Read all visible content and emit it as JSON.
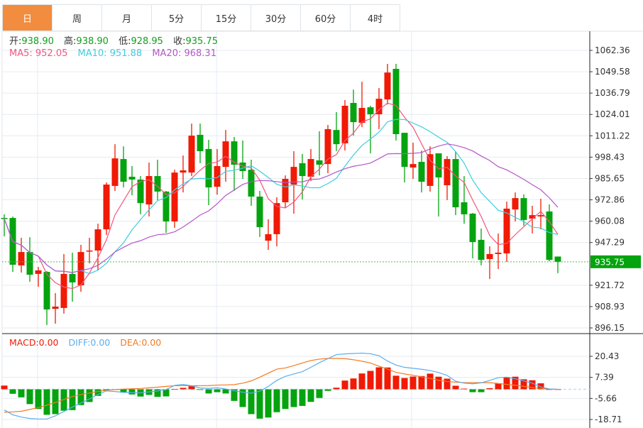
{
  "tabs": [
    {
      "label": "日",
      "active": true
    },
    {
      "label": "周"
    },
    {
      "label": "月"
    },
    {
      "label": "5分"
    },
    {
      "label": "15分"
    },
    {
      "label": "30分"
    },
    {
      "label": "60分"
    },
    {
      "label": "4时"
    }
  ],
  "quote": {
    "open_label": "开:",
    "open": "938.90",
    "high_label": "高:",
    "high": "938.90",
    "low_label": "低:",
    "low": "928.95",
    "close_label": "收:",
    "close": "935.75"
  },
  "ma": {
    "ma5": "MA5: 952.05",
    "ma10": "MA10: 951.88",
    "ma20": "MA20: 968.31"
  },
  "macd_info": {
    "macd": "MACD:0.00",
    "diff": "DIFF:0.00",
    "dea": "DEA:0.00"
  },
  "colors": {
    "up": "#f01a05",
    "down": "#05a30f",
    "accent": "#f28c3e",
    "ma5": "#f2567e",
    "ma10": "#3fcde0",
    "ma20": "#b456c8",
    "diff": "#5aaef0",
    "dea": "#f57a20"
  },
  "current_price": "935.75",
  "chart_data": {
    "type": "candlestick",
    "price_axis": {
      "ticks": [
        "1062.36",
        "1049.58",
        "1036.79",
        "1024.01",
        "1011.22",
        "998.43",
        "985.65",
        "972.86",
        "960.08",
        "947.29",
        "921.72",
        "908.93",
        "896.15"
      ],
      "range": [
        896.15,
        1062.36
      ]
    },
    "macd_axis": {
      "ticks": [
        "20.43",
        "7.39",
        "-5.66",
        "-18.71"
      ],
      "range": [
        -18.71,
        20.43
      ]
    },
    "ohlc": [
      [
        962.0,
        964.2,
        951.0,
        961.6
      ],
      [
        962.0,
        962.9,
        929.7,
        934.0
      ],
      [
        933.6,
        950.1,
        929.3,
        941.6
      ],
      [
        941.6,
        950.5,
        923.8,
        928.0
      ],
      [
        928.5,
        932.7,
        920.8,
        930.6
      ],
      [
        929.7,
        930.2,
        897.9,
        907.2
      ],
      [
        907.6,
        917.0,
        898.7,
        908.9
      ],
      [
        908.1,
        940.4,
        904.7,
        928.5
      ],
      [
        928.5,
        941.2,
        911.9,
        923.4
      ],
      [
        921.7,
        945.9,
        917.8,
        941.6
      ],
      [
        942.1,
        950.1,
        934.8,
        942.5
      ],
      [
        942.5,
        958.6,
        930.6,
        955.2
      ],
      [
        955.2,
        983.3,
        951.8,
        982.0
      ],
      [
        981.2,
        1006.2,
        978.2,
        997.7
      ],
      [
        997.3,
        1004.9,
        980.3,
        983.7
      ],
      [
        986.7,
        993.1,
        975.6,
        985.0
      ],
      [
        985.0,
        987.1,
        964.2,
        970.9
      ],
      [
        970.1,
        995.2,
        962.9,
        987.1
      ],
      [
        987.1,
        996.9,
        972.7,
        977.8
      ],
      [
        977.8,
        978.2,
        953.1,
        959.9
      ],
      [
        959.9,
        990.9,
        956.1,
        989.2
      ],
      [
        989.2,
        999.4,
        977.3,
        990.5
      ],
      [
        989.2,
        1018.5,
        987.1,
        1011.3
      ],
      [
        1011.8,
        1018.5,
        994.8,
        1002.0
      ],
      [
        1003.3,
        1008.8,
        969.7,
        980.3
      ],
      [
        980.7,
        1003.3,
        976.0,
        993.1
      ],
      [
        992.6,
        1014.7,
        983.7,
        1007.9
      ],
      [
        1007.9,
        1010.5,
        978.2,
        993.9
      ],
      [
        995.2,
        1008.4,
        985.4,
        990.1
      ],
      [
        990.9,
        996.9,
        969.3,
        974.8
      ],
      [
        974.8,
        978.2,
        950.6,
        956.5
      ],
      [
        948.4,
        961.2,
        942.9,
        952.3
      ],
      [
        952.3,
        974.4,
        945.0,
        970.9
      ],
      [
        971.4,
        987.5,
        968.0,
        985.4
      ],
      [
        982.0,
        1002.0,
        964.6,
        992.6
      ],
      [
        994.8,
        1000.3,
        973.1,
        987.1
      ],
      [
        986.7,
        1003.3,
        984.1,
        997.3
      ],
      [
        996.5,
        1013.9,
        987.5,
        993.9
      ],
      [
        994.3,
        1017.7,
        988.8,
        1015.2
      ],
      [
        1014.7,
        1025.4,
        1002.0,
        1006.2
      ],
      [
        1006.7,
        1032.6,
        1002.4,
        1029.2
      ],
      [
        1030.9,
        1038.9,
        1011.3,
        1019.4
      ],
      [
        1019.0,
        1043.6,
        1016.4,
        1027.9
      ],
      [
        1028.3,
        1029.2,
        1000.7,
        1024.1
      ],
      [
        1024.1,
        1039.8,
        1015.2,
        1033.4
      ],
      [
        1033.0,
        1054.3,
        1030.0,
        1049.1
      ],
      [
        1051.3,
        1054.3,
        1008.4,
        1012.2
      ],
      [
        1013.0,
        1013.0,
        983.3,
        992.6
      ],
      [
        992.2,
        1007.1,
        985.4,
        994.3
      ],
      [
        995.6,
        1002.4,
        977.3,
        983.7
      ],
      [
        981.2,
        1004.9,
        977.8,
        1000.2
      ],
      [
        1000.7,
        1000.7,
        962.9,
        986.3
      ],
      [
        981.6,
        999.0,
        972.7,
        997.3
      ],
      [
        997.3,
        1002.0,
        963.7,
        968.4
      ],
      [
        971.4,
        987.1,
        958.6,
        964.2
      ],
      [
        964.6,
        965.0,
        937.8,
        947.6
      ],
      [
        948.9,
        955.7,
        933.6,
        936.9
      ],
      [
        937.4,
        945.0,
        925.5,
        940.4
      ],
      [
        940.4,
        952.7,
        931.4,
        941.2
      ],
      [
        940.8,
        971.8,
        935.7,
        967.6
      ],
      [
        967.1,
        977.3,
        959.9,
        973.9
      ],
      [
        973.9,
        976.1,
        957.4,
        960.8
      ],
      [
        961.6,
        969.3,
        952.7,
        963.7
      ],
      [
        962.9,
        973.5,
        955.2,
        963.7
      ],
      [
        965.9,
        970.1,
        936.1,
        936.9
      ],
      [
        938.9,
        938.9,
        928.95,
        935.75
      ]
    ],
    "macd_hist": [
      2.3,
      -2.8,
      -5.0,
      -9.2,
      -12.2,
      -15.8,
      -15.4,
      -13.3,
      -12.9,
      -9.8,
      -7.9,
      -4.1,
      -0.7,
      -0.3,
      -2.1,
      -3.2,
      -4.5,
      -3.5,
      -4.7,
      -4.4,
      0.1,
      0.9,
      1.9,
      -0.4,
      -2.6,
      -1.8,
      -2.6,
      -7.2,
      -11.0,
      -15.4,
      -18.2,
      -17.5,
      -14.2,
      -12.2,
      -11.0,
      -10.3,
      -7.8,
      -5.4,
      -1.0,
      1.0,
      5.4,
      6.7,
      9.8,
      11.4,
      13.6,
      13.5,
      8.4,
      7.0,
      7.9,
      8.2,
      9.7,
      7.8,
      6.6,
      2.2,
      0.4,
      -1.8,
      -1.8,
      0.7,
      3.7,
      7.6,
      7.8,
      6.2,
      5.6,
      3.7,
      0.0,
      0.0
    ],
    "diff": [
      -12.8,
      -15.8,
      -17.2,
      -18.1,
      -18.4,
      -18.4,
      -16.5,
      -13.8,
      -11.0,
      -8.5,
      -6.0,
      -3.2,
      -1.0,
      -1.4,
      -1.9,
      -2.1,
      -2.2,
      -1.6,
      -1.0,
      -0.2,
      2.4,
      3.0,
      2.2,
      0.8,
      0.6,
      0.9,
      0.2,
      -0.9,
      -1.8,
      -2.4,
      -1.2,
      1.8,
      5.5,
      8.0,
      9.5,
      10.9,
      13.6,
      16.5,
      19.0,
      21.5,
      21.9,
      22.2,
      22.4,
      22.0,
      20.8,
      17.5,
      15.0,
      13.6,
      13.0,
      12.4,
      11.6,
      10.4,
      8.6,
      5.0,
      3.8,
      3.4,
      4.0,
      5.5,
      7.2,
      7.5,
      6.5,
      5.2,
      3.8,
      1.5,
      0.2,
      0.0
    ],
    "dea": [
      -14.2,
      -14.0,
      -13.6,
      -12.5,
      -11.3,
      -9.8,
      -8.2,
      -6.3,
      -4.5,
      -3.3,
      -2.3,
      -1.4,
      -0.6,
      -0.2,
      0.1,
      0.3,
      0.5,
      0.9,
      1.3,
      1.8,
      2.2,
      2.3,
      2.2,
      2.2,
      2.3,
      2.6,
      2.7,
      2.9,
      3.8,
      5.2,
      7.5,
      10.0,
      12.5,
      13.2,
      14.7,
      16.3,
      17.8,
      18.7,
      19.1,
      19.1,
      19.0,
      18.3,
      17.4,
      16.3,
      14.3,
      12.5,
      10.5,
      9.5,
      8.7,
      7.7,
      6.7,
      5.6,
      4.8,
      4.4,
      4.1,
      4.1,
      4.1,
      4.1,
      3.6,
      3.0,
      2.5,
      1.8,
      1.1,
      0.5,
      0.1,
      0.0
    ]
  }
}
